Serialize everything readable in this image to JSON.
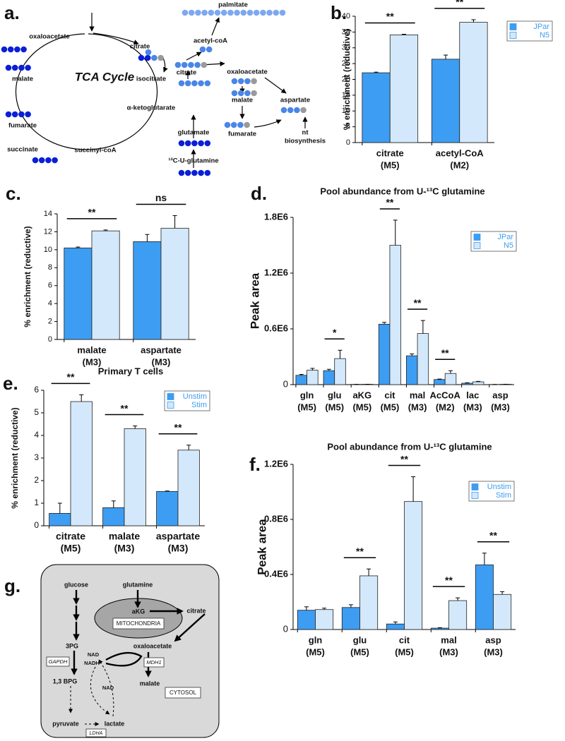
{
  "panel_labels": [
    "a.",
    "b.",
    "c.",
    "d.",
    "e.",
    "f.",
    "g."
  ],
  "diagram_a": {
    "title": "TCA Cycle",
    "labels": [
      "oxaloacetate",
      "citrate",
      "malate",
      "isocitrate",
      "fumarate",
      "α-ketoglutarate",
      "succinate",
      "succinyl-coA",
      "glutamate",
      "¹³C-U-glutamine",
      "palmitate",
      "acetyl-coA",
      "citrate",
      "oxaloacetate",
      "malate",
      "aspartate",
      "fumarate",
      "nt",
      "biosynthesis"
    ]
  },
  "diagram_g": {
    "labels": [
      "glucose",
      "glutamine",
      "aKG",
      "MITOCHONDRIA",
      "citrate",
      "3PG",
      "oxaloacetate",
      "GAPDH",
      "NAD",
      "NADH",
      "MDH1",
      "1,3 BPG",
      "malate",
      "NAD",
      "CYTOSOL",
      "pyruvate",
      "lactate",
      "LDHA"
    ]
  },
  "chart_data": [
    {
      "type": "bar",
      "ylabel": "% enrichment (reductive)",
      "categories": [
        [
          "citrate",
          "(M5)"
        ],
        [
          "acetyl-CoA",
          "(M2)"
        ]
      ],
      "series": [
        {
          "name": "JPar",
          "color": "#3d9df2",
          "values": [
            22.1,
            26.4
          ],
          "errors": [
            0.2,
            1.3
          ]
        },
        {
          "name": "N5",
          "color": "#d3e8fb",
          "values": [
            34.1,
            38.1
          ],
          "errors": [
            0.2,
            0.8
          ]
        }
      ],
      "annotations": [
        "**",
        "**"
      ],
      "ylim": [
        0,
        40
      ],
      "yticks": [
        0,
        5,
        10,
        15,
        20,
        25,
        30,
        35,
        40
      ],
      "legend": "upper right",
      "legend_color": "#3d9df2"
    },
    {
      "type": "bar",
      "ylabel": "% enrichment (reductive)",
      "categories": [
        [
          "malate",
          "(M3)"
        ],
        [
          "aspartate",
          "(M3)"
        ]
      ],
      "series": [
        {
          "name": null,
          "color": "#3d9df2",
          "values": [
            10.2,
            10.9
          ],
          "errors": [
            0.1,
            0.8
          ]
        },
        {
          "name": null,
          "color": "#d3e8fb",
          "values": [
            12.1,
            12.4
          ],
          "errors": [
            0.1,
            1.4
          ]
        }
      ],
      "annotations": [
        "**",
        "ns"
      ],
      "ylim": [
        0,
        14
      ],
      "yticks": [
        0,
        2,
        4,
        6,
        8,
        10,
        12,
        14
      ]
    },
    {
      "type": "bar",
      "title": "Pool abundance from U-¹³C glutamine",
      "ylabel": "Peak area",
      "categories": [
        [
          "gln",
          "(M5)"
        ],
        [
          "glu",
          "(M5)"
        ],
        [
          "aKG",
          "(M5)"
        ],
        [
          "cit",
          "(M5)"
        ],
        [
          "mal",
          "(M3)"
        ],
        [
          "AcCoA",
          "(M2)"
        ],
        [
          "lac",
          "(M3)"
        ],
        [
          "asp",
          "(M3)"
        ]
      ],
      "series": [
        {
          "name": "JPar",
          "color": "#3d9df2",
          "values": [
            100000,
            150000,
            3000,
            650000,
            310000,
            55000,
            15000,
            2000
          ],
          "errors": [
            10000,
            15000,
            0,
            20000,
            20000,
            5000,
            5000,
            0
          ]
        },
        {
          "name": "N5",
          "color": "#d3e8fb",
          "values": [
            155000,
            280000,
            4000,
            1500000,
            550000,
            120000,
            30000,
            4000
          ],
          "errors": [
            20000,
            90000,
            0,
            270000,
            140000,
            30000,
            5000,
            0
          ]
        }
      ],
      "annotations": [
        null,
        "*",
        null,
        "**",
        "**",
        "**",
        null,
        null
      ],
      "ylim": [
        0,
        1800000
      ],
      "yticks": [
        0,
        {
          "value": 600000,
          "label": "0.6E6"
        },
        {
          "value": 1200000,
          "label": "1.2E6"
        },
        {
          "value": 1800000,
          "label": "1.8E6"
        }
      ],
      "legend": "upper right",
      "legend_color": "#3d9df2"
    },
    {
      "type": "bar",
      "title": "Primary T cells",
      "ylabel": "% enrichment (reductive)",
      "categories": [
        [
          "citrate",
          "(M5)"
        ],
        [
          "malate",
          "(M3)"
        ],
        [
          "aspartate",
          "(M3)"
        ]
      ],
      "series": [
        {
          "name": "Unstim",
          "color": "#3d9df2",
          "values": [
            0.55,
            0.8,
            1.52
          ],
          "errors": [
            0.45,
            0.3,
            0.02
          ]
        },
        {
          "name": "Stim",
          "color": "#d3e8fb",
          "values": [
            5.5,
            4.3,
            3.35
          ],
          "errors": [
            0.3,
            0.12,
            0.22
          ]
        }
      ],
      "annotations": [
        "**",
        "**",
        "**"
      ],
      "ylim": [
        0,
        6
      ],
      "yticks": [
        0,
        1,
        2,
        3,
        4,
        5,
        6
      ],
      "legend": "upper right",
      "legend_color": "#3d9df2"
    },
    {
      "type": "bar",
      "title": "Pool abundance from U-¹³C glutamine",
      "ylabel": "Peak area",
      "categories": [
        [
          "gln",
          "(M5)"
        ],
        [
          "glu",
          "(M5)"
        ],
        [
          "cit",
          "(M5)"
        ],
        [
          "mal",
          "(M3)"
        ],
        [
          "asp",
          "(M3)"
        ]
      ],
      "series": [
        {
          "name": "Unstim",
          "color": "#3d9df2",
          "values": [
            140000,
            160000,
            40000,
            10000,
            470000
          ],
          "errors": [
            25000,
            20000,
            15000,
            3000,
            85000
          ]
        },
        {
          "name": "Stim",
          "color": "#d3e8fb",
          "values": [
            145000,
            390000,
            930000,
            210000,
            255000
          ],
          "errors": [
            10000,
            50000,
            180000,
            20000,
            20000
          ]
        }
      ],
      "annotations": [
        null,
        "**",
        "**",
        "**",
        "**"
      ],
      "ylim": [
        0,
        1200000
      ],
      "yticks": [
        0,
        {
          "value": 400000,
          "label": "0.4E6"
        },
        {
          "value": 800000,
          "label": "0.8E6"
        },
        {
          "value": 1200000,
          "label": "1.2E6"
        }
      ],
      "legend": "upper right",
      "legend_color": "#3d9df2"
    }
  ]
}
